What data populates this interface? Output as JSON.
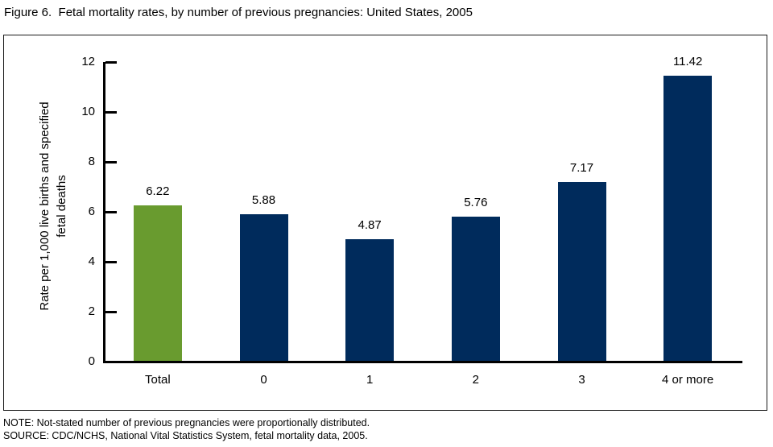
{
  "title": "Figure 6.  Fetal mortality rates, by number of previous pregnancies: United States, 2005",
  "chart_data": {
    "type": "bar",
    "categories": [
      "Total",
      "0",
      "1",
      "2",
      "3",
      "4 or more"
    ],
    "values": [
      6.22,
      5.88,
      4.87,
      5.76,
      7.17,
      11.42
    ],
    "value_labels": [
      "6.22",
      "5.88",
      "4.87",
      "5.76",
      "7.17",
      "11.42"
    ],
    "title": "Figure 6.  Fetal mortality rates, by number of previous pregnancies: United States, 2005",
    "xlabel": "",
    "ylabel": "Rate per 1,000 live births and specified fetal deaths",
    "ylabel_lines": [
      "Rate per 1,000 live births and specified",
      "fetal deaths"
    ],
    "ylim": [
      0,
      12
    ],
    "yticks": [
      0,
      2,
      4,
      6,
      8,
      10,
      12
    ],
    "grid": false,
    "legend": false,
    "colors": {
      "total_bar": "#699B2F",
      "default_bar": "#002B5C",
      "axis": "#000000"
    }
  },
  "notes": {
    "note": "NOTE: Not-stated number of previous pregnancies were proportionally distributed.",
    "source": "SOURCE: CDC/NCHS, National Vital Statistics System, fetal mortality data, 2005."
  }
}
